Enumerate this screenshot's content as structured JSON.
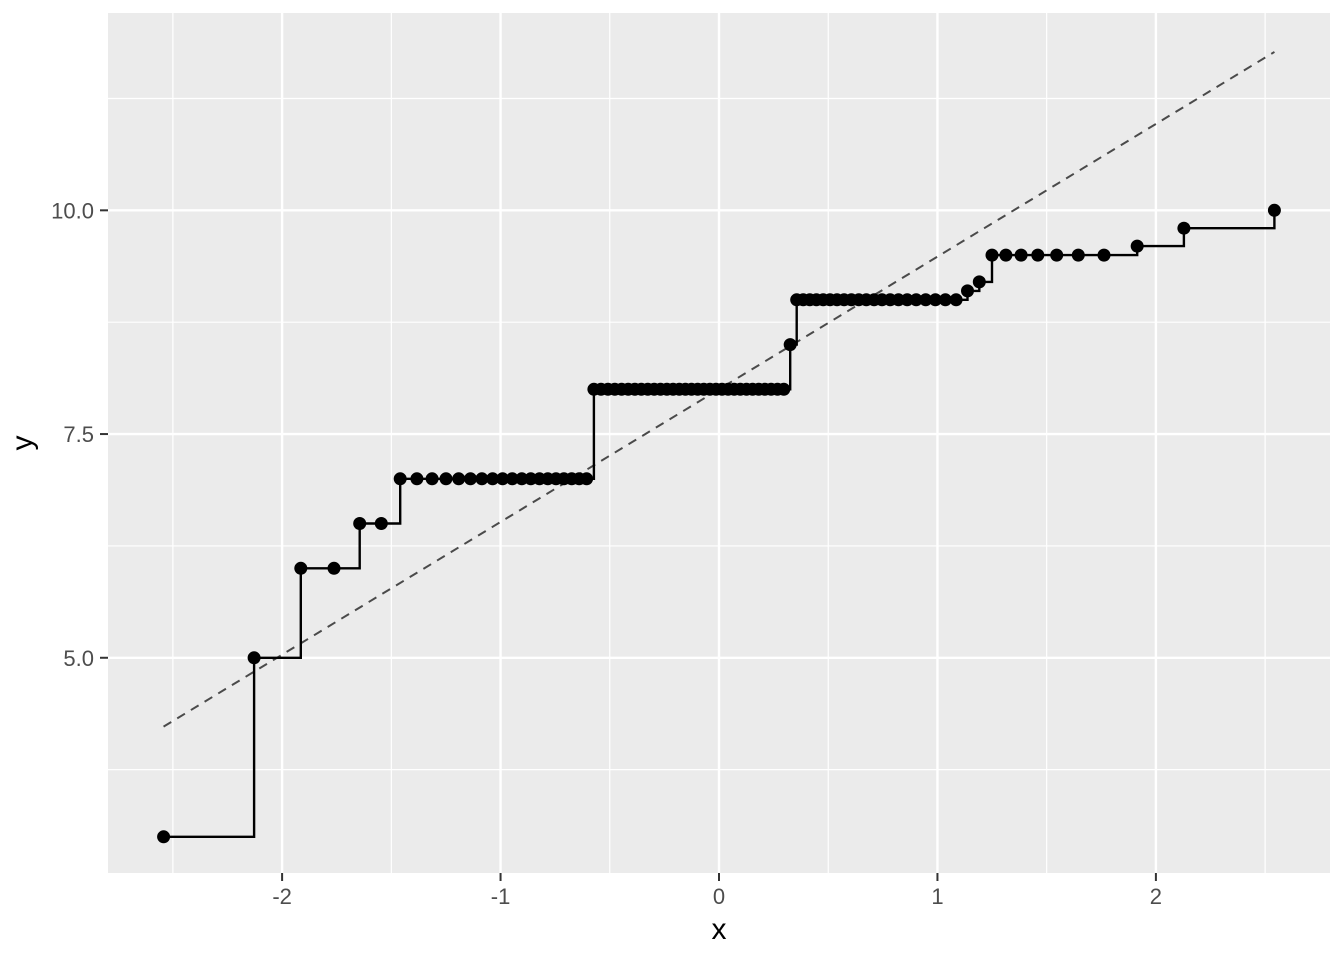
{
  "figure": {
    "background": "#FFFFFF",
    "panel_background": "#EBEBEB",
    "grid_color": "#FFFFFF",
    "point_color": "#000000",
    "step_color": "#000000",
    "ref_line_color": "#4a4a4a",
    "tick_mark_color": "#333333",
    "tick_label_color": "#4d4d4d",
    "axis_title_color": "#000000"
  },
  "chart_data": {
    "type": "scatter",
    "subtype": "normal-qq-plot-with-step",
    "geoms": [
      "step",
      "point",
      "abline-dashed"
    ],
    "title": "",
    "xlabel": "x",
    "ylabel": "y",
    "xlim": [
      -2.797,
      2.797
    ],
    "ylim": [
      2.595,
      12.205
    ],
    "grid": true,
    "legend": "none",
    "x_ticks": {
      "values": [
        -2,
        -1,
        0,
        1,
        2
      ],
      "labels": [
        "-2",
        "-1",
        "0",
        "1",
        "2"
      ]
    },
    "y_ticks": {
      "values": [
        5.0,
        7.5,
        10.0
      ],
      "labels": [
        "5.0",
        "7.5",
        "10.0"
      ]
    },
    "x_minor": [
      -2.5,
      -1.5,
      -0.5,
      0.5,
      1.5,
      2.5
    ],
    "y_minor": [
      3.75,
      6.25,
      8.75,
      11.25
    ],
    "ref_line": {
      "style": "dashed",
      "slope": 1.4826,
      "intercept": 8.0,
      "x_start": -2.5427,
      "y_start": 4.2302,
      "x_end": 2.5427,
      "y_end": 11.7698
    },
    "n_points": 90,
    "x": [
      -2.5427,
      -2.128,
      -1.9145,
      -1.7624,
      -1.6449,
      -1.5461,
      -1.4595,
      -1.383,
      -1.3135,
      -1.2498,
      -1.1915,
      -1.1374,
      -1.0853,
      -1.0364,
      -0.9904,
      -0.9463,
      -0.9027,
      -0.8616,
      -0.8216,
      -0.7835,
      -0.7462,
      -0.7099,
      -0.6745,
      -0.6399,
      -0.606,
      -0.5729,
      -0.5402,
      -0.5083,
      -0.477,
      -0.4461,
      -0.4156,
      -0.3853,
      -0.3555,
      -0.326,
      -0.2967,
      -0.2676,
      -0.2387,
      -0.2101,
      -0.1819,
      -0.1537,
      -0.1257,
      -0.0976,
      -0.0697,
      -0.0418,
      -0.0139,
      0.0139,
      0.0418,
      0.0697,
      0.0976,
      0.1257,
      0.1537,
      0.1819,
      0.2101,
      0.2387,
      0.2676,
      0.2967,
      0.326,
      0.3555,
      0.3853,
      0.4156,
      0.4461,
      0.477,
      0.5083,
      0.5402,
      0.5729,
      0.606,
      0.6399,
      0.6745,
      0.7099,
      0.7462,
      0.7835,
      0.8216,
      0.8616,
      0.9027,
      0.9463,
      0.9904,
      1.0364,
      1.0853,
      1.1374,
      1.1915,
      1.2498,
      1.3135,
      1.383,
      1.4595,
      1.5461,
      1.6449,
      1.7624,
      1.9145,
      2.128,
      2.5427
    ],
    "y": [
      3.0,
      5.0,
      6.0,
      6.0,
      6.5,
      6.5,
      7.0,
      7.0,
      7.0,
      7.0,
      7.0,
      7.0,
      7.0,
      7.0,
      7.0,
      7.0,
      7.0,
      7.0,
      7.0,
      7.0,
      7.0,
      7.0,
      7.0,
      7.0,
      7.0,
      8.0,
      8.0,
      8.0,
      8.0,
      8.0,
      8.0,
      8.0,
      8.0,
      8.0,
      8.0,
      8.0,
      8.0,
      8.0,
      8.0,
      8.0,
      8.0,
      8.0,
      8.0,
      8.0,
      8.0,
      8.0,
      8.0,
      8.0,
      8.0,
      8.0,
      8.0,
      8.0,
      8.0,
      8.0,
      8.0,
      8.0,
      8.5,
      9.0,
      9.0,
      9.0,
      9.0,
      9.0,
      9.0,
      9.0,
      9.0,
      9.0,
      9.0,
      9.0,
      9.0,
      9.0,
      9.0,
      9.0,
      9.0,
      9.0,
      9.0,
      9.0,
      9.0,
      9.0,
      9.1,
      9.2,
      9.5,
      9.5,
      9.5,
      9.5,
      9.5,
      9.5,
      9.5,
      9.6,
      9.8,
      10.0
    ]
  }
}
